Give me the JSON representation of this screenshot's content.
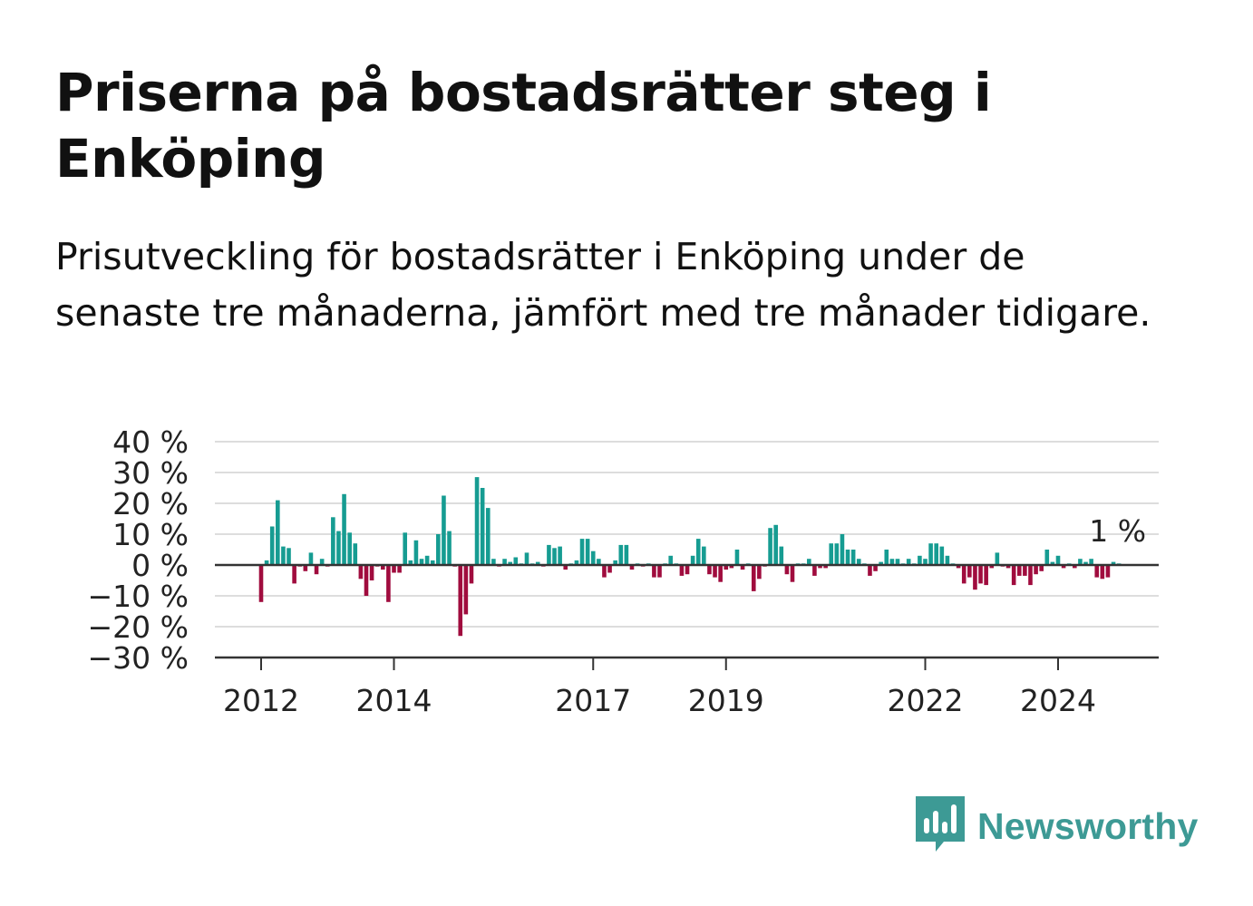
{
  "title": "Priserna på bostadsrätter steg i Enköping",
  "subtitle": "Prisutveckling för bostadsrätter i Enköping under de senaste tre månaderna, jämfört med tre månader tidigare.",
  "brand": {
    "name": "Newsworthy",
    "icon": "newsworthy-logo-icon",
    "color": "#3d9a95"
  },
  "chart_data": {
    "type": "bar",
    "colors": {
      "positive": "#169c92",
      "negative": "#a00c3e",
      "grid": "#dddddd",
      "axis": "#333333"
    },
    "ylim": [
      -30,
      40
    ],
    "y_ticks": [
      40,
      30,
      20,
      10,
      0,
      -10,
      -20,
      -30
    ],
    "y_tick_labels": [
      "40 %",
      "30 %",
      "20 %",
      "10 %",
      "0 %",
      "−10 %",
      "−20 %",
      "−30 %"
    ],
    "x_ticks": [
      {
        "year": 2012,
        "label": "2012"
      },
      {
        "year": 2014,
        "label": "2014"
      },
      {
        "year": 2017,
        "label": "2017"
      },
      {
        "year": 2019,
        "label": "2019"
      },
      {
        "year": 2022,
        "label": "2022"
      },
      {
        "year": 2024,
        "label": "2024"
      }
    ],
    "start": "2012-01",
    "end_label": "1 %",
    "unit": "%",
    "grid": true,
    "values": [
      -12,
      1.5,
      12.5,
      21,
      6,
      5.5,
      -6,
      -0.5,
      -2,
      4,
      -3,
      2,
      -0.5,
      15.5,
      11,
      23,
      10.5,
      7,
      -4.5,
      -10,
      -5,
      -0.5,
      -1.5,
      -12,
      -2.5,
      -2.5,
      10.5,
      1.5,
      8,
      2,
      3,
      1.5,
      10,
      22.5,
      11,
      -0.5,
      -23,
      -16,
      -6,
      28.5,
      25,
      18.5,
      2,
      -0.5,
      2,
      1,
      2.5,
      0.5,
      4,
      0.5,
      1,
      -0.5,
      6.5,
      5.5,
      6,
      -1.5,
      0.5,
      1.5,
      8.5,
      8.5,
      4.5,
      2,
      -4,
      -2.5,
      1.5,
      6.5,
      6.5,
      -1.5,
      0.5,
      -0.5,
      0.5,
      -4,
      -4,
      0.5,
      3,
      0.5,
      -3.5,
      -3,
      3,
      8.5,
      6,
      -3,
      -4,
      -5.5,
      -1.5,
      -1,
      5,
      -1.5,
      0.5,
      -8.5,
      -4.5,
      -0.5,
      12,
      13,
      6,
      -3,
      -5.5,
      0.5,
      0.5,
      2,
      -3.5,
      -1,
      -1,
      7,
      7,
      10,
      5,
      5,
      2,
      0.5,
      -3.5,
      -2,
      1,
      5,
      2,
      2,
      0.5,
      2,
      0.5,
      3,
      2,
      7,
      7,
      6,
      3,
      0.5,
      -1,
      -6,
      -4,
      -8,
      -6,
      -6.5,
      -1,
      4,
      -0.5,
      -1,
      -6.5,
      -3.5,
      -3.5,
      -6.5,
      -3,
      -2,
      5,
      1,
      3,
      -1,
      0.5,
      -1,
      2,
      1,
      2,
      -4,
      -4.5,
      -4,
      1,
      0.5
    ]
  }
}
